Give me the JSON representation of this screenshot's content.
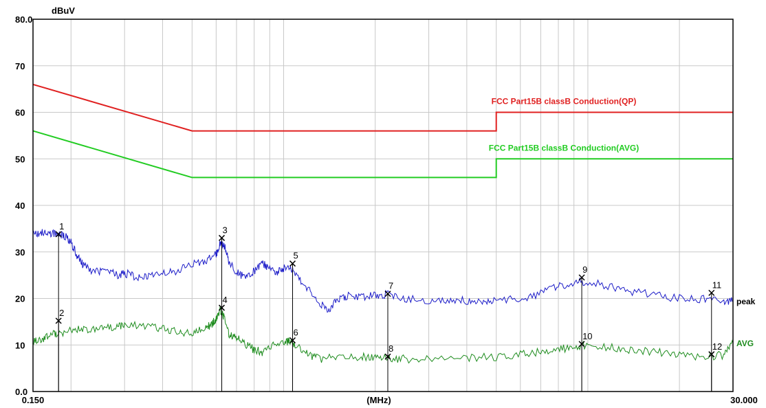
{
  "chart_data": {
    "type": "line",
    "title": "",
    "xlabel": "(MHz)",
    "ylabel": "dBuV",
    "x_scale": "log",
    "xlim": [
      0.15,
      30.0
    ],
    "ylim": [
      0,
      80
    ],
    "x_tick_labels": [
      "0.150",
      "30.000"
    ],
    "y_ticks": [
      {
        "value": 0,
        "label": "0.0"
      },
      {
        "value": 10,
        "label": "10"
      },
      {
        "value": 20,
        "label": "20"
      },
      {
        "value": 30,
        "label": "30"
      },
      {
        "value": 40,
        "label": "40"
      },
      {
        "value": 50,
        "label": "50"
      },
      {
        "value": 60,
        "label": "60"
      },
      {
        "value": 70,
        "label": "70"
      },
      {
        "value": 80,
        "label": "80.0"
      }
    ],
    "grid": true,
    "limit_lines": [
      {
        "name": "FCC  Part15B classB Conduction(QP)",
        "color": "#e02020",
        "points": [
          [
            0.15,
            66
          ],
          [
            0.5,
            56
          ],
          [
            5.0,
            56
          ],
          [
            5.0,
            60
          ],
          [
            30.0,
            60
          ]
        ]
      },
      {
        "name": "FCC  Part15B classB Conduction(AVG)",
        "color": "#22cc22",
        "points": [
          [
            0.15,
            56
          ],
          [
            0.5,
            46
          ],
          [
            5.0,
            46
          ],
          [
            5.0,
            50
          ],
          [
            30.0,
            50
          ]
        ]
      }
    ],
    "series": [
      {
        "name": "peak",
        "color": "#1c1cc8",
        "points": [
          [
            0.15,
            34
          ],
          [
            0.16,
            34.2
          ],
          [
            0.17,
            33.8
          ],
          [
            0.18,
            33.9
          ],
          [
            0.19,
            33.5
          ],
          [
            0.2,
            32
          ],
          [
            0.21,
            29
          ],
          [
            0.22,
            27
          ],
          [
            0.24,
            25.5
          ],
          [
            0.26,
            26.5
          ],
          [
            0.28,
            25
          ],
          [
            0.3,
            25.5
          ],
          [
            0.33,
            24.5
          ],
          [
            0.36,
            25
          ],
          [
            0.4,
            25.5
          ],
          [
            0.45,
            26
          ],
          [
            0.5,
            27.5
          ],
          [
            0.55,
            28
          ],
          [
            0.6,
            29.5
          ],
          [
            0.62,
            32
          ],
          [
            0.64,
            31
          ],
          [
            0.66,
            28
          ],
          [
            0.7,
            25.5
          ],
          [
            0.75,
            24.5
          ],
          [
            0.8,
            26
          ],
          [
            0.85,
            27.5
          ],
          [
            0.9,
            26.5
          ],
          [
            0.95,
            25.5
          ],
          [
            1.0,
            26.5
          ],
          [
            1.05,
            27
          ],
          [
            1.1,
            25
          ],
          [
            1.2,
            22
          ],
          [
            1.3,
            19.5
          ],
          [
            1.4,
            17.5
          ],
          [
            1.5,
            20
          ],
          [
            1.6,
            20.5
          ],
          [
            1.8,
            20.5
          ],
          [
            2.0,
            20.5
          ],
          [
            2.2,
            21
          ],
          [
            2.5,
            20
          ],
          [
            3.0,
            19.5
          ],
          [
            3.5,
            19.5
          ],
          [
            4.0,
            19.5
          ],
          [
            4.5,
            19.5
          ],
          [
            5.0,
            19.7
          ],
          [
            6.0,
            19.8
          ],
          [
            7.0,
            21
          ],
          [
            8.0,
            22.5
          ],
          [
            9.0,
            23.5
          ],
          [
            10.0,
            23.5
          ],
          [
            12.0,
            22.5
          ],
          [
            14.0,
            21.5
          ],
          [
            17.0,
            20.5
          ],
          [
            20.0,
            20
          ],
          [
            24.0,
            19.8
          ],
          [
            28.0,
            19.5
          ],
          [
            30.0,
            19.5
          ]
        ]
      },
      {
        "name": "AVG",
        "color": "#1e8c1e",
        "points": [
          [
            0.15,
            10.5
          ],
          [
            0.16,
            11.2
          ],
          [
            0.17,
            12
          ],
          [
            0.18,
            12.5
          ],
          [
            0.2,
            13
          ],
          [
            0.22,
            13.5
          ],
          [
            0.25,
            13.5
          ],
          [
            0.28,
            14
          ],
          [
            0.3,
            14.5
          ],
          [
            0.35,
            14
          ],
          [
            0.4,
            13.5
          ],
          [
            0.45,
            13
          ],
          [
            0.5,
            12.5
          ],
          [
            0.55,
            13.5
          ],
          [
            0.58,
            14.5
          ],
          [
            0.6,
            15.5
          ],
          [
            0.62,
            17.5
          ],
          [
            0.64,
            15.5
          ],
          [
            0.66,
            12.5
          ],
          [
            0.7,
            11.5
          ],
          [
            0.75,
            10
          ],
          [
            0.8,
            9
          ],
          [
            0.85,
            8.5
          ],
          [
            0.9,
            9.5
          ],
          [
            1.0,
            10.5
          ],
          [
            1.05,
            11
          ],
          [
            1.1,
            10
          ],
          [
            1.2,
            8
          ],
          [
            1.3,
            7
          ],
          [
            1.5,
            7.5
          ],
          [
            1.8,
            7.5
          ],
          [
            2.0,
            7.5
          ],
          [
            2.2,
            7
          ],
          [
            2.5,
            7
          ],
          [
            3.0,
            7
          ],
          [
            4.0,
            7.3
          ],
          [
            5.0,
            7.5
          ],
          [
            6.0,
            8
          ],
          [
            7.0,
            8.5
          ],
          [
            8.0,
            9
          ],
          [
            9.0,
            9.5
          ],
          [
            10.0,
            10
          ],
          [
            12.0,
            9.5
          ],
          [
            14.0,
            9
          ],
          [
            17.0,
            8.5
          ],
          [
            20.0,
            8
          ],
          [
            24.0,
            7.5
          ],
          [
            28.0,
            7.8
          ],
          [
            30.0,
            10.5
          ]
        ]
      }
    ],
    "markers": [
      {
        "label": "1",
        "x": 0.182,
        "y": 33.8,
        "series": "peak"
      },
      {
        "label": "2",
        "x": 0.182,
        "y": 15.2,
        "series": "AVG"
      },
      {
        "label": "3",
        "x": 0.626,
        "y": 33.0,
        "series": "peak"
      },
      {
        "label": "4",
        "x": 0.626,
        "y": 18.0,
        "series": "AVG"
      },
      {
        "label": "5",
        "x": 1.07,
        "y": 27.5,
        "series": "peak"
      },
      {
        "label": "6",
        "x": 1.07,
        "y": 11.0,
        "series": "AVG"
      },
      {
        "label": "7",
        "x": 2.2,
        "y": 21.0,
        "series": "peak"
      },
      {
        "label": "8",
        "x": 2.2,
        "y": 7.5,
        "series": "AVG"
      },
      {
        "label": "9",
        "x": 9.55,
        "y": 24.5,
        "series": "peak"
      },
      {
        "label": "10",
        "x": 9.55,
        "y": 10.2,
        "series": "AVG"
      },
      {
        "label": "11",
        "x": 25.5,
        "y": 21.2,
        "series": "peak"
      },
      {
        "label": "12",
        "x": 25.5,
        "y": 8.0,
        "series": "AVG"
      }
    ]
  }
}
